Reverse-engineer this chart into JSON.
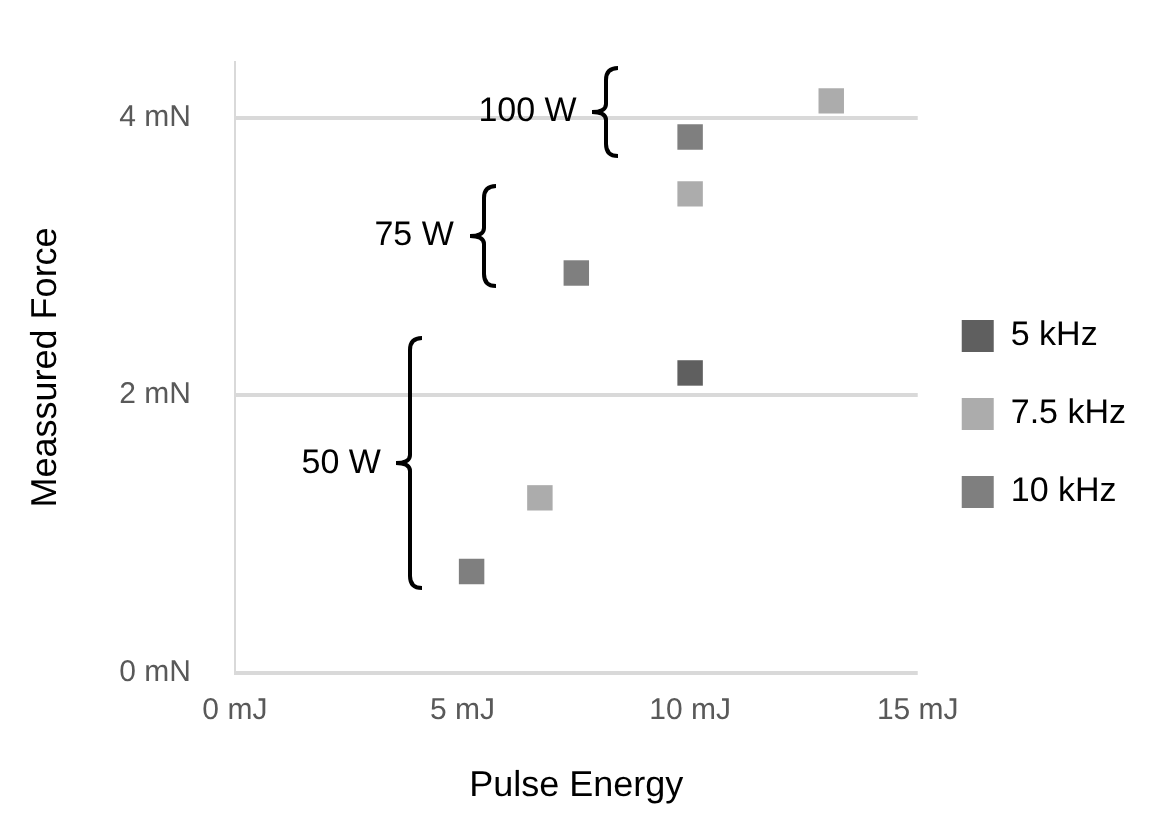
{
  "chart_data": {
    "type": "scatter",
    "xlabel": "Pulse Energy",
    "ylabel": "Meassured Force",
    "xlim": [
      0,
      15
    ],
    "xticks": [
      {
        "value": 0,
        "label": "0 mJ"
      },
      {
        "value": 5,
        "label": "5 mJ"
      },
      {
        "value": 10,
        "label": "10 mJ"
      },
      {
        "value": 15,
        "label": "15 mJ"
      }
    ],
    "ylim": [
      0,
      4.4
    ],
    "yticks": [
      {
        "value": 0,
        "label": "0 mN"
      },
      {
        "value": 2,
        "label": "2 mN"
      },
      {
        "value": 4,
        "label": "4 mN"
      }
    ],
    "grid": "y",
    "legend": "right",
    "marker": "square",
    "series": [
      {
        "name": "5 kHz",
        "color": "#5f5f5f",
        "x": [
          10
        ],
        "values": [
          2.16
        ]
      },
      {
        "name": "7.5 kHz",
        "color": "#acacac",
        "x": [
          13.1,
          10,
          6.7
        ],
        "values": [
          4.12,
          3.45,
          1.26
        ]
      },
      {
        "name": "10 kHz",
        "color": "#7f7f7f",
        "x": [
          10,
          7.5,
          5.2
        ],
        "values": [
          3.86,
          2.88,
          0.73
        ]
      }
    ],
    "annotations": [
      "100 W",
      "75 W",
      "50 W"
    ]
  }
}
